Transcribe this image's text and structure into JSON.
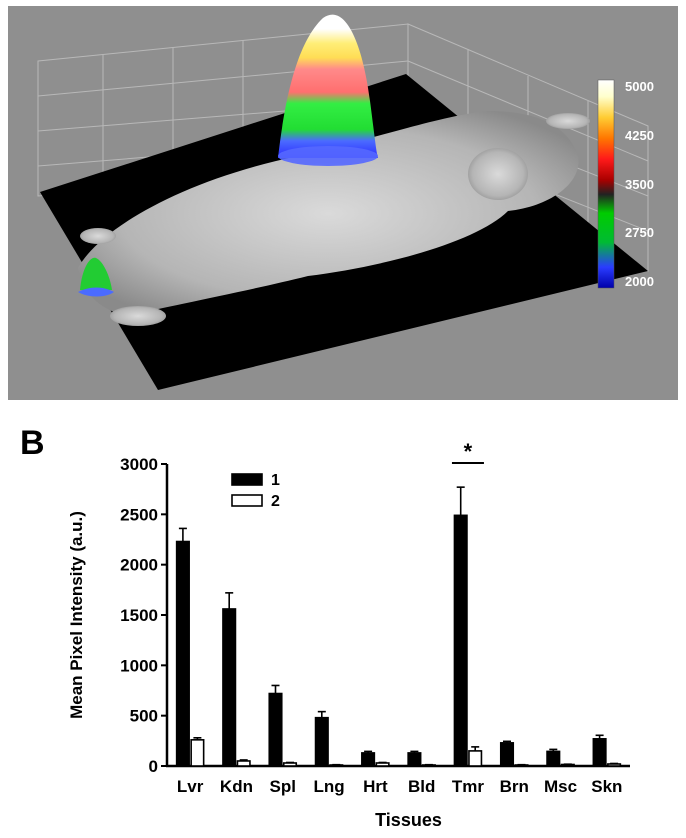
{
  "panel_a": {
    "colorbar_ticks": [
      "5000",
      "4250",
      "3500",
      "2750",
      "2000"
    ]
  },
  "panel_b_label": "B",
  "chart_data": {
    "type": "bar",
    "categories": [
      "Lvr",
      "Kdn",
      "Spl",
      "Lng",
      "Hrt",
      "Bld",
      "Tmr",
      "Brn",
      "Msc",
      "Skn"
    ],
    "series": [
      {
        "name": "1",
        "color": "#000000",
        "values": [
          2230,
          1560,
          720,
          480,
          130,
          130,
          2490,
          230,
          145,
          270
        ],
        "errors": [
          130,
          160,
          80,
          60,
          15,
          15,
          280,
          15,
          20,
          35
        ]
      },
      {
        "name": "2",
        "color": "#ffffff",
        "values": [
          260,
          50,
          30,
          10,
          30,
          10,
          150,
          10,
          15,
          20
        ],
        "errors": [
          20,
          10,
          5,
          3,
          5,
          3,
          40,
          3,
          3,
          5
        ]
      }
    ],
    "xlabel": "Tissues",
    "ylabel": "Mean Pixel Intensity (a.u.)",
    "ylim": [
      0,
      3000
    ],
    "yticks": [
      0,
      500,
      1000,
      1500,
      2000,
      2500,
      3000
    ],
    "significance": {
      "label": "*",
      "category": "Tmr"
    },
    "legend_position": "top-left",
    "grid": false
  }
}
